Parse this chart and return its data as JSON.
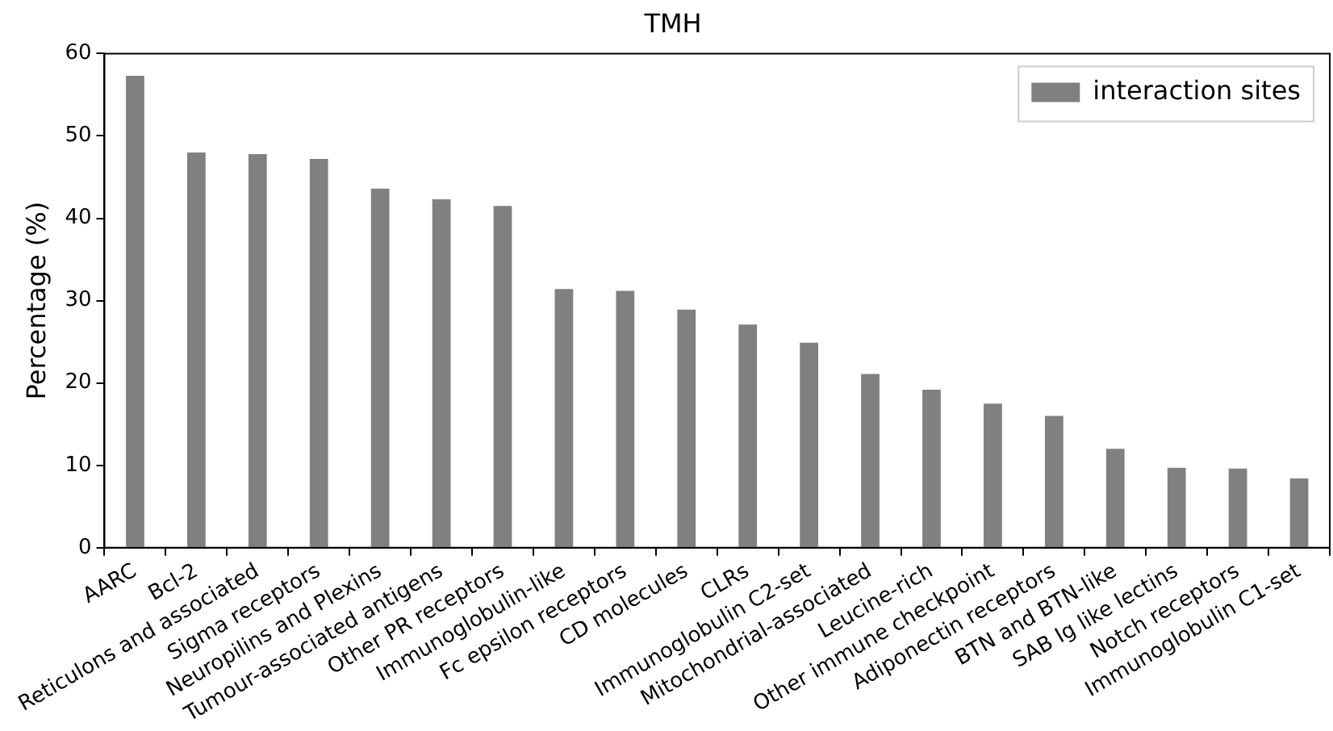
{
  "chart_data": {
    "type": "bar",
    "title": "TMH",
    "ylabel": "Percentage (%)",
    "categories": [
      "AARC",
      "Bcl-2",
      "Reticulons and associated",
      "Sigma receptors",
      "Neuropilins and Plexins",
      "Tumour-associated antigens",
      "Other PR receptors",
      "Immunoglobulin-like",
      "Fc epsilon receptors",
      "CD molecules",
      "CLRs",
      "Immunoglobulin C2-set",
      "Mitochondrial-associated",
      "Leucine-rich",
      "Other immune checkpoint",
      "Adiponectin receptors",
      "BTN and BTN-like",
      "SAB Ig like lectins",
      "Notch receptors",
      "Immunoglobulin C1-set"
    ],
    "series": [
      {
        "name": "interaction sites",
        "color": "#808080",
        "values": [
          57.3,
          48.0,
          47.8,
          47.2,
          43.6,
          42.3,
          41.5,
          31.4,
          31.2,
          28.9,
          27.1,
          24.9,
          21.1,
          19.2,
          17.5,
          16.0,
          12.0,
          9.7,
          9.6,
          8.4
        ]
      }
    ],
    "ylim": [
      0,
      60
    ],
    "yticks": [
      0,
      10,
      20,
      30,
      40,
      50,
      60
    ],
    "grid": false,
    "legend": "top right"
  }
}
